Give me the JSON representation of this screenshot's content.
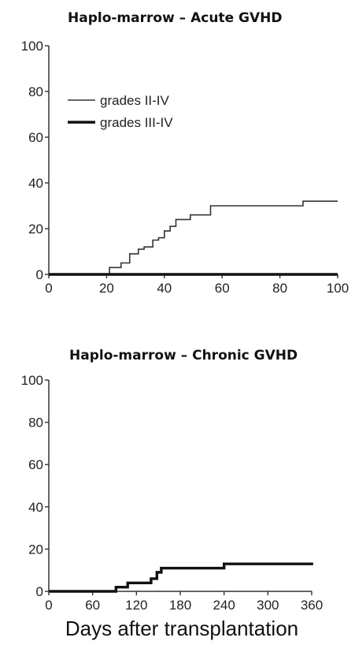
{
  "chart_data": [
    {
      "type": "line",
      "title": "Haplo-marrow – Acute GVHD",
      "xlim": [
        0,
        100
      ],
      "ylim": [
        0,
        100
      ],
      "xticks": [
        0,
        20,
        40,
        60,
        80,
        100
      ],
      "yticks": [
        0,
        20,
        40,
        60,
        80,
        100
      ],
      "grid": false,
      "legend_position": "upper-left",
      "series": [
        {
          "name": "grades II-IV",
          "style": "thin",
          "x": [
            0,
            21,
            21,
            25,
            25,
            28,
            28,
            31,
            31,
            33,
            33,
            36,
            36,
            38,
            38,
            40,
            40,
            42,
            42,
            44,
            44,
            49,
            49,
            56,
            56,
            88,
            88,
            100
          ],
          "y": [
            0,
            0,
            3,
            3,
            5,
            5,
            9,
            9,
            11,
            11,
            12,
            12,
            15,
            15,
            16,
            16,
            19,
            19,
            21,
            21,
            24,
            24,
            26,
            26,
            30,
            30,
            32,
            32
          ]
        },
        {
          "name": "grades III-IV",
          "style": "thick",
          "x": [
            0,
            100
          ],
          "y": [
            0,
            0
          ]
        }
      ]
    },
    {
      "type": "line",
      "title": "Haplo-marrow – Chronic GVHD",
      "xlabel": "Days after transplantation",
      "xlim": [
        0,
        360
      ],
      "ylim": [
        0,
        100
      ],
      "xticks": [
        0,
        60,
        120,
        180,
        240,
        300,
        360
      ],
      "yticks": [
        0,
        20,
        40,
        60,
        80,
        100
      ],
      "grid": false,
      "series": [
        {
          "style": "thick",
          "x": [
            0,
            92,
            92,
            108,
            108,
            140,
            140,
            148,
            148,
            154,
            154,
            240,
            240,
            365
          ],
          "y": [
            0,
            0,
            2,
            2,
            4,
            4,
            6,
            6,
            9,
            9,
            11,
            11,
            13,
            13
          ]
        }
      ]
    }
  ]
}
